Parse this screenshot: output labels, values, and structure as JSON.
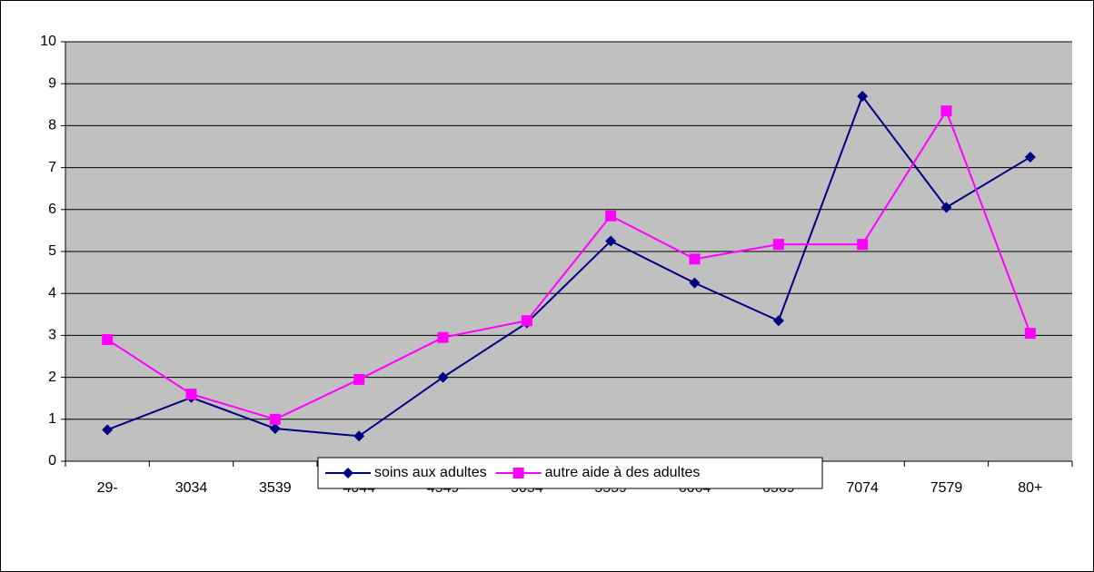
{
  "chart_data": {
    "type": "line",
    "categories": [
      "29-",
      "3034",
      "3539",
      "4044",
      "4549",
      "5054",
      "5559",
      "6064",
      "6569",
      "7074",
      "7579",
      "80+"
    ],
    "series": [
      {
        "name": "soins aux adultes",
        "color": "#000080",
        "marker": "diamond",
        "values": [
          0.75,
          1.52,
          0.78,
          0.6,
          2.0,
          3.3,
          5.25,
          4.25,
          3.35,
          8.7,
          6.05,
          7.25
        ]
      },
      {
        "name": "autre aide à des adultes",
        "color": "#ff00ff",
        "marker": "square",
        "values": [
          2.9,
          1.6,
          1.0,
          1.95,
          2.95,
          3.35,
          5.85,
          4.82,
          5.17,
          5.17,
          8.35,
          3.05
        ]
      }
    ],
    "ylim": [
      0,
      10
    ],
    "yticks": [
      0,
      1,
      2,
      3,
      4,
      5,
      6,
      7,
      8,
      9,
      10
    ],
    "grid": true,
    "legend": "bottom"
  }
}
